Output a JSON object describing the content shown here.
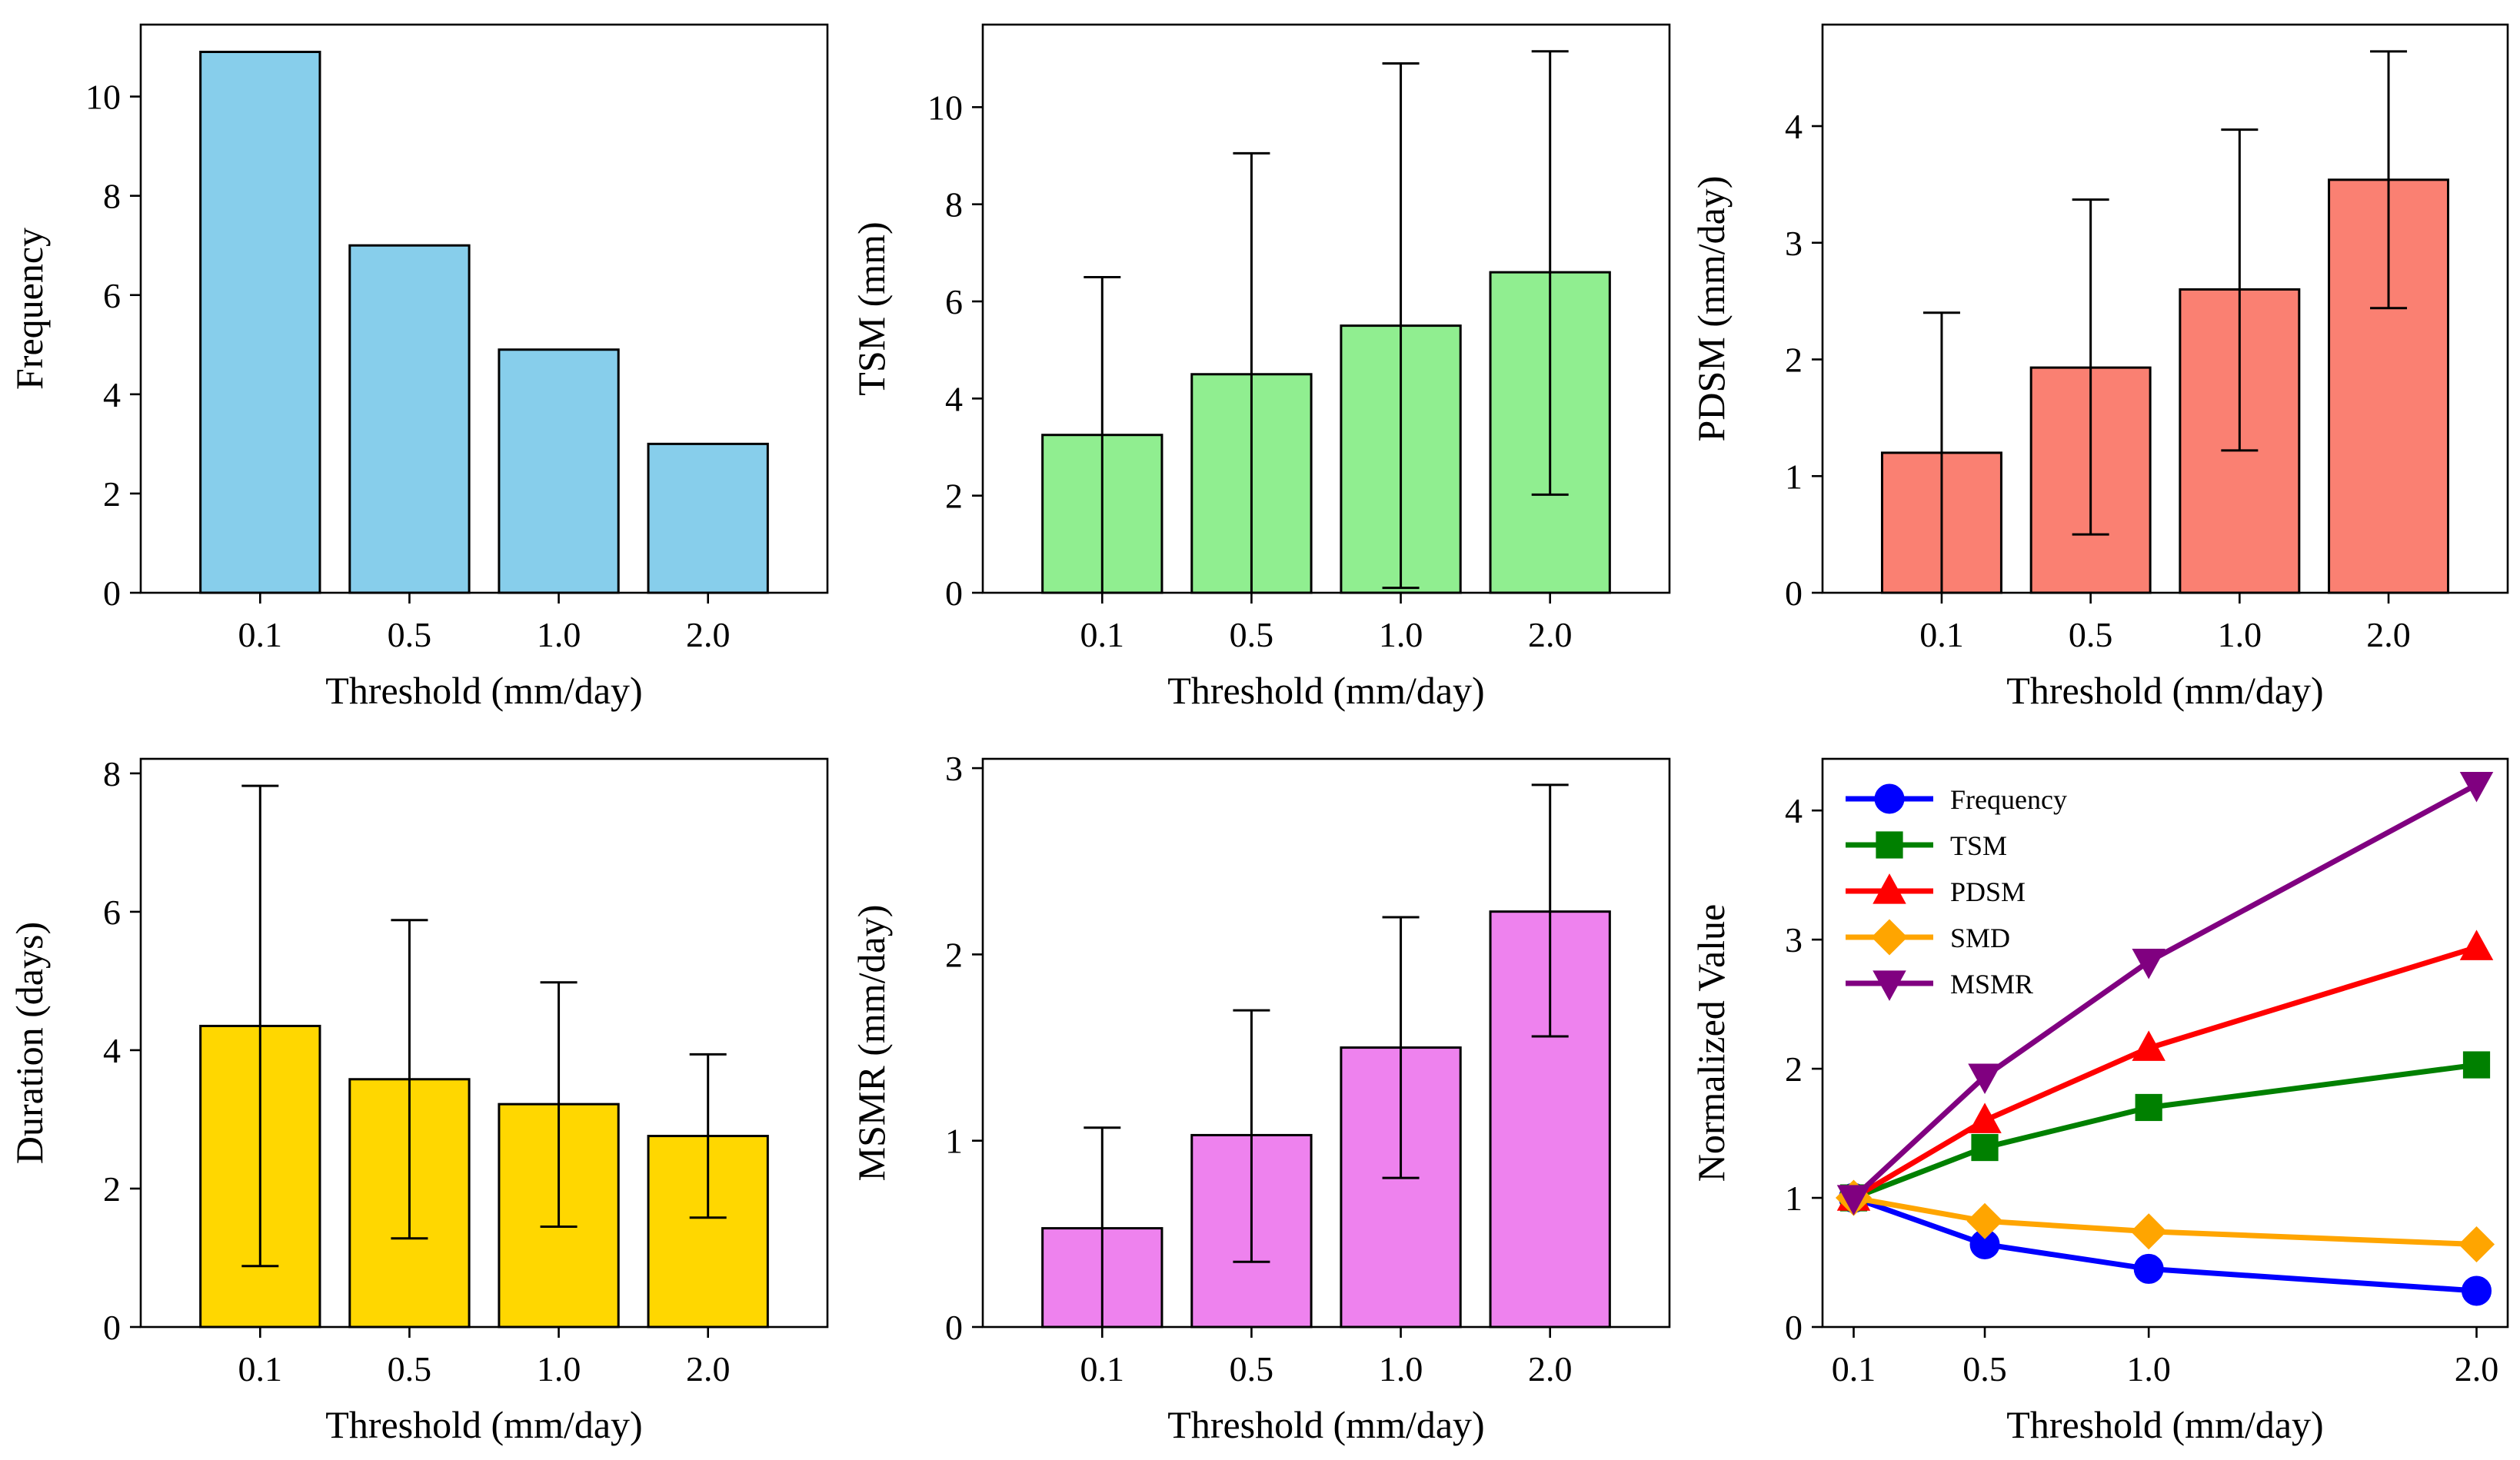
{
  "chart_data": [
    {
      "type": "bar",
      "categories": [
        "0.1",
        "0.5",
        "1.0",
        "2.0"
      ],
      "values": [
        10.9,
        7.0,
        4.9,
        3.0
      ],
      "errors": null,
      "color": "#87CEEB",
      "xlabel": "Threshold (mm/day)",
      "ylabel": "Frequency",
      "ylim": [
        0,
        11.45
      ],
      "yticks": [
        0,
        2,
        4,
        6,
        8,
        10
      ],
      "ytick_labels": [
        "0",
        "2",
        "4",
        "6",
        "8",
        "10"
      ]
    },
    {
      "type": "bar",
      "categories": [
        "0.1",
        "0.5",
        "1.0",
        "2.0"
      ],
      "values": [
        3.25,
        4.5,
        5.5,
        6.6
      ],
      "errors": [
        [
          0.0,
          6.5
        ],
        [
          0.0,
          9.05
        ],
        [
          0.1,
          10.9
        ],
        [
          2.02,
          11.15
        ]
      ],
      "color": "#90EE90",
      "xlabel": "Threshold (mm/day)",
      "ylabel": "TSM (mm)",
      "ylim": [
        0,
        11.7
      ],
      "yticks": [
        0,
        2,
        4,
        6,
        8,
        10
      ],
      "ytick_labels": [
        "0",
        "2",
        "4",
        "6",
        "8",
        "10"
      ]
    },
    {
      "type": "bar",
      "categories": [
        "0.1",
        "0.5",
        "1.0",
        "2.0"
      ],
      "values": [
        1.2,
        1.93,
        2.6,
        3.54
      ],
      "errors": [
        [
          0.0,
          2.4
        ],
        [
          0.5,
          3.37
        ],
        [
          1.22,
          3.97
        ],
        [
          2.44,
          4.64
        ]
      ],
      "color": "#FA8072",
      "xlabel": "Threshold (mm/day)",
      "ylabel": "PDSM (mm/day)",
      "ylim": [
        0,
        4.87
      ],
      "yticks": [
        0,
        1,
        2,
        3,
        4
      ],
      "ytick_labels": [
        "0",
        "1",
        "2",
        "3",
        "4"
      ]
    },
    {
      "type": "bar",
      "categories": [
        "0.1",
        "0.5",
        "1.0",
        "2.0"
      ],
      "values": [
        4.35,
        3.58,
        3.22,
        2.76
      ],
      "errors": [
        [
          0.88,
          7.82
        ],
        [
          1.28,
          5.88
        ],
        [
          1.45,
          4.98
        ],
        [
          1.58,
          3.94
        ]
      ],
      "color": "#FFD700",
      "xlabel": "Threshold (mm/day)",
      "ylabel": "Duration (days)",
      "ylim": [
        0,
        8.21
      ],
      "yticks": [
        0,
        2,
        4,
        6,
        8
      ],
      "ytick_labels": [
        "0",
        "2",
        "4",
        "6",
        "8"
      ]
    },
    {
      "type": "bar",
      "categories": [
        "0.1",
        "0.5",
        "1.0",
        "2.0"
      ],
      "values": [
        0.53,
        1.03,
        1.5,
        2.23
      ],
      "errors": [
        [
          0.0,
          1.07
        ],
        [
          0.35,
          1.7
        ],
        [
          0.8,
          2.2
        ],
        [
          1.56,
          2.91
        ]
      ],
      "color": "#EE82EE",
      "xlabel": "Threshold (mm/day)",
      "ylabel": "MSMR (mm/day)",
      "ylim": [
        0,
        3.05
      ],
      "yticks": [
        0,
        1,
        2,
        3
      ],
      "ytick_labels": [
        "0",
        "1",
        "2",
        "3"
      ]
    },
    {
      "type": "line",
      "x": [
        0.1,
        0.5,
        1.0,
        2.0
      ],
      "xtick_labels": [
        "0.1",
        "0.5",
        "1.0",
        "2.0"
      ],
      "xlim": [
        0.005,
        2.095
      ],
      "xlabel": "Threshold (mm/day)",
      "ylabel": "Normalized Value",
      "ylim": [
        0,
        4.4
      ],
      "yticks": [
        0,
        1,
        2,
        3,
        4
      ],
      "ytick_labels": [
        "0",
        "1",
        "2",
        "3",
        "4"
      ],
      "legend_position": "upper-left",
      "series": [
        {
          "name": "Frequency",
          "values": [
            1.0,
            0.64,
            0.45,
            0.28
          ],
          "color": "#0000FF",
          "marker": "circle"
        },
        {
          "name": "TSM",
          "values": [
            1.0,
            1.39,
            1.7,
            2.03
          ],
          "color": "#008000",
          "marker": "square"
        },
        {
          "name": "PDSM",
          "values": [
            1.0,
            1.6,
            2.16,
            2.94
          ],
          "color": "#FF0000",
          "marker": "triangle-up"
        },
        {
          "name": "SMD",
          "values": [
            1.0,
            0.82,
            0.74,
            0.64
          ],
          "color": "#FFA500",
          "marker": "diamond"
        },
        {
          "name": "MSMR",
          "values": [
            1.0,
            1.94,
            2.83,
            4.2
          ],
          "color": "#800080",
          "marker": "triangle-down"
        }
      ]
    }
  ]
}
